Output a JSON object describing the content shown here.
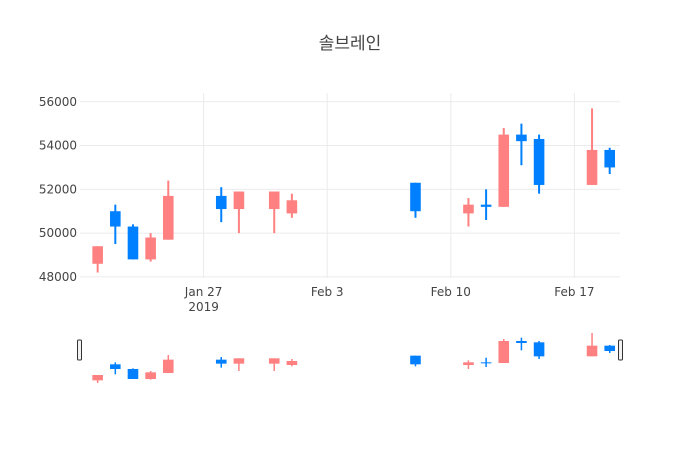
{
  "chart_data": {
    "type": "candlestick",
    "title": "솔브레인",
    "y_ticks": [
      "48000",
      "50000",
      "52000",
      "54000",
      "56000"
    ],
    "ylim": [
      47950,
      56400
    ],
    "x_ticks": [
      {
        "date": "2019-01-27",
        "label": "Jan 27",
        "sublabel": "2019"
      },
      {
        "date": "2019-02-03",
        "label": "Feb 3"
      },
      {
        "date": "2019-02-10",
        "label": "Feb 10"
      },
      {
        "date": "2019-02-17",
        "label": "Feb 17"
      }
    ],
    "xlim": [
      "2019-01-20",
      "2019-02-19T14:00"
    ],
    "increasing_color": "#0080ff",
    "decreasing_color": "#ff8080",
    "grid": true,
    "rangeslider": true,
    "candles": [
      {
        "date": "2019-01-21",
        "open": 49400,
        "high": 49400,
        "low": 48200,
        "close": 48600
      },
      {
        "date": "2019-01-22",
        "open": 50300,
        "high": 51300,
        "low": 49500,
        "close": 51000
      },
      {
        "date": "2019-01-23",
        "open": 48800,
        "high": 50400,
        "low": 48800,
        "close": 50300
      },
      {
        "date": "2019-01-24",
        "open": 49800,
        "high": 50000,
        "low": 48700,
        "close": 48800
      },
      {
        "date": "2019-01-25",
        "open": 51700,
        "high": 52400,
        "low": 49700,
        "close": 49700
      },
      {
        "date": "2019-01-28",
        "open": 51100,
        "high": 52100,
        "low": 50500,
        "close": 51700
      },
      {
        "date": "2019-01-29",
        "open": 51900,
        "high": 51900,
        "low": 50000,
        "close": 51100
      },
      {
        "date": "2019-01-31",
        "open": 51900,
        "high": 51900,
        "low": 50000,
        "close": 51100
      },
      {
        "date": "2019-02-01",
        "open": 51500,
        "high": 51800,
        "low": 50700,
        "close": 50900
      },
      {
        "date": "2019-02-08",
        "open": 51000,
        "high": 52300,
        "low": 50700,
        "close": 52300
      },
      {
        "date": "2019-02-11",
        "open": 51300,
        "high": 51600,
        "low": 50300,
        "close": 50900
      },
      {
        "date": "2019-02-12",
        "open": 51200,
        "high": 52000,
        "low": 50600,
        "close": 51300
      },
      {
        "date": "2019-02-13",
        "open": 54500,
        "high": 54800,
        "low": 51200,
        "close": 51200
      },
      {
        "date": "2019-02-14",
        "open": 54200,
        "high": 55000,
        "low": 53100,
        "close": 54500
      },
      {
        "date": "2019-02-15",
        "open": 52200,
        "high": 54500,
        "low": 51800,
        "close": 54300
      },
      {
        "date": "2019-02-18",
        "open": 53800,
        "high": 55700,
        "low": 52200,
        "close": 52200
      },
      {
        "date": "2019-02-19",
        "open": 53000,
        "high": 53900,
        "low": 52700,
        "close": 53800
      }
    ]
  }
}
